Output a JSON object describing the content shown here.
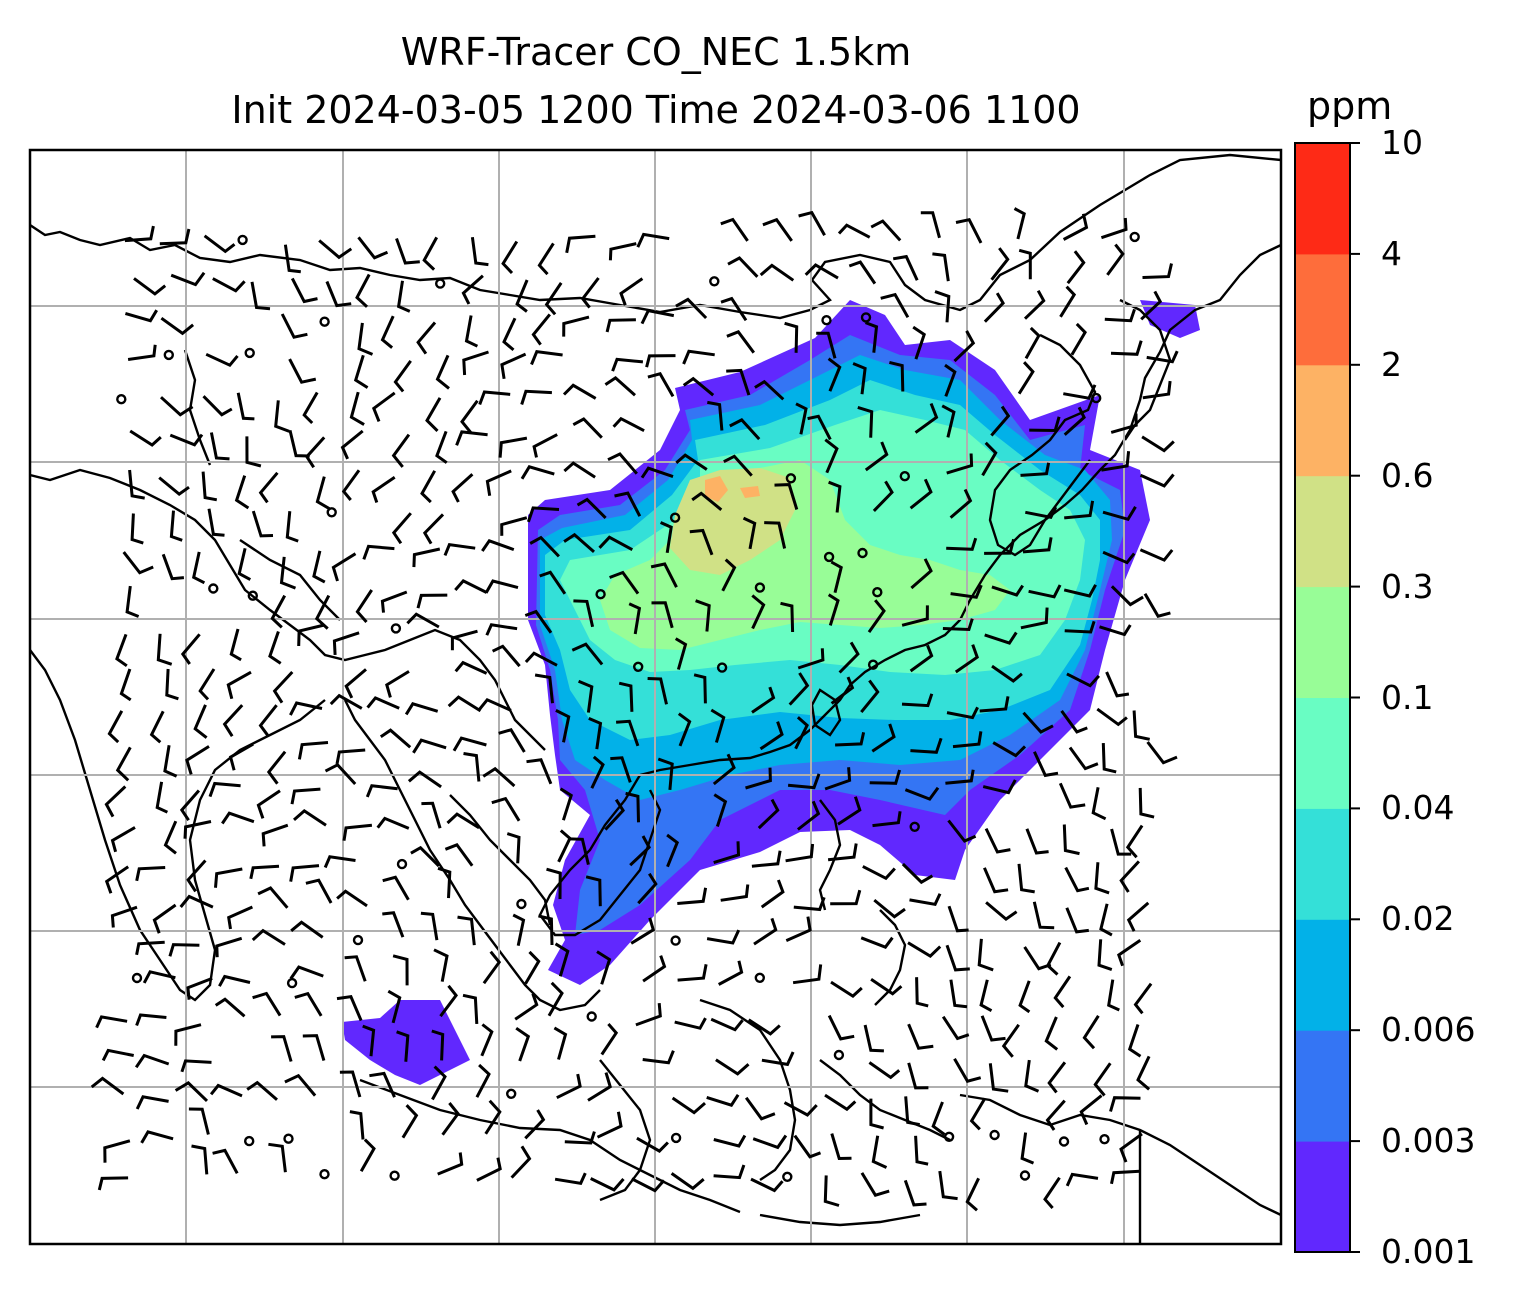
{
  "figure": {
    "title_line1": "WRF-Tracer CO_NEC 1.5km",
    "title_line2": "Init 2024-03-05 1200 Time 2024-03-06 1100"
  },
  "colorbar": {
    "unit": "ppm",
    "levels": [
      "0.001",
      "0.003",
      "0.006",
      "0.02",
      "0.04",
      "0.1",
      "0.3",
      "0.6",
      "2",
      "4",
      "10"
    ],
    "colors": [
      "#6128fe",
      "#3475f4",
      "#02b1e8",
      "#34e0d8",
      "#69fdc3",
      "#98fd97",
      "#d0e186",
      "#fdb264",
      "#fe6d3b",
      "#fe2a16"
    ]
  },
  "map": {
    "type": "filled contour map with wind barbs",
    "field": "CO_NEC tracer concentration",
    "gridlines": true,
    "coastlines": true,
    "country_borders": true
  }
}
